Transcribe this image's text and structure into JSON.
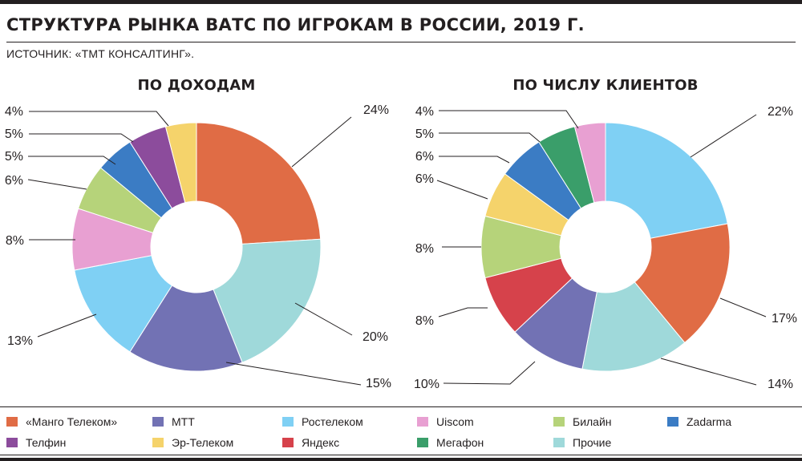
{
  "header": {
    "title": "СТРУКТУРА РЫНКА ВАТС ПО ИГРОКАМ В РОССИИ, 2019 Г.",
    "source": "ИСТОЧНИК: «ТМТ КОНСАЛТИНГ»."
  },
  "legend": [
    {
      "label": "«Манго Телеком»",
      "color": "#e06c45"
    },
    {
      "label": "МТТ",
      "color": "#7272b4"
    },
    {
      "label": "Ростелеком",
      "color": "#7fd0f4"
    },
    {
      "label": "Uiscom",
      "color": "#e8a0d2"
    },
    {
      "label": "Билайн",
      "color": "#b6d37a"
    },
    {
      "label": "Zadarma",
      "color": "#3b7cc4"
    },
    {
      "label": "Телфин",
      "color": "#8c4c9c"
    },
    {
      "label": "Эр-Телеком",
      "color": "#f5d36b"
    },
    {
      "label": "Яндекс",
      "color": "#d6424b"
    },
    {
      "label": "Мегафон",
      "color": "#3a9e6a"
    },
    {
      "label": "Прочие",
      "color": "#9fd9da"
    }
  ],
  "chart_data": [
    {
      "type": "pie",
      "title": "ПО ДОХОДАМ",
      "slices": [
        {
          "name": "«Манго Телеком»",
          "value": 24,
          "label": "24%",
          "color": "#e06c45"
        },
        {
          "name": "Прочие",
          "value": 20,
          "label": "20%",
          "color": "#9fd9da"
        },
        {
          "name": "МТТ",
          "value": 15,
          "label": "15%",
          "color": "#7272b4"
        },
        {
          "name": "Ростелеком",
          "value": 13,
          "label": "13%",
          "color": "#7fd0f4"
        },
        {
          "name": "Uiscom",
          "value": 8,
          "label": "8%",
          "color": "#e8a0d2"
        },
        {
          "name": "Билайн",
          "value": 6,
          "label": "6%",
          "color": "#b6d37a"
        },
        {
          "name": "Zadarma",
          "value": 5,
          "label": "5%",
          "color": "#3b7cc4"
        },
        {
          "name": "Телфин",
          "value": 5,
          "label": "5%",
          "color": "#8c4c9c"
        },
        {
          "name": "Эр-Телеком",
          "value": 4,
          "label": "4%",
          "color": "#f5d36b"
        }
      ]
    },
    {
      "type": "pie",
      "title": "ПО ЧИСЛУ КЛИЕНТОВ",
      "slices": [
        {
          "name": "Ростелеком",
          "value": 22,
          "label": "22%",
          "color": "#7fd0f4"
        },
        {
          "name": "«Манго Телеком»",
          "value": 17,
          "label": "17%",
          "color": "#e06c45"
        },
        {
          "name": "Прочие",
          "value": 14,
          "label": "14%",
          "color": "#9fd9da"
        },
        {
          "name": "МТТ",
          "value": 10,
          "label": "10%",
          "color": "#7272b4"
        },
        {
          "name": "Яндекс",
          "value": 8,
          "label": "8%",
          "color": "#d6424b"
        },
        {
          "name": "Билайн",
          "value": 8,
          "label": "8%",
          "color": "#b6d37a"
        },
        {
          "name": "Эр-Телеком",
          "value": 6,
          "label": "6%",
          "color": "#f5d36b"
        },
        {
          "name": "Zadarma",
          "value": 6,
          "label": "6%",
          "color": "#3b7cc4"
        },
        {
          "name": "Мегафон",
          "value": 5,
          "label": "5%",
          "color": "#3a9e6a"
        },
        {
          "name": "Uiscom",
          "value": 4,
          "label": "4%",
          "color": "#e8a0d2"
        }
      ]
    }
  ]
}
